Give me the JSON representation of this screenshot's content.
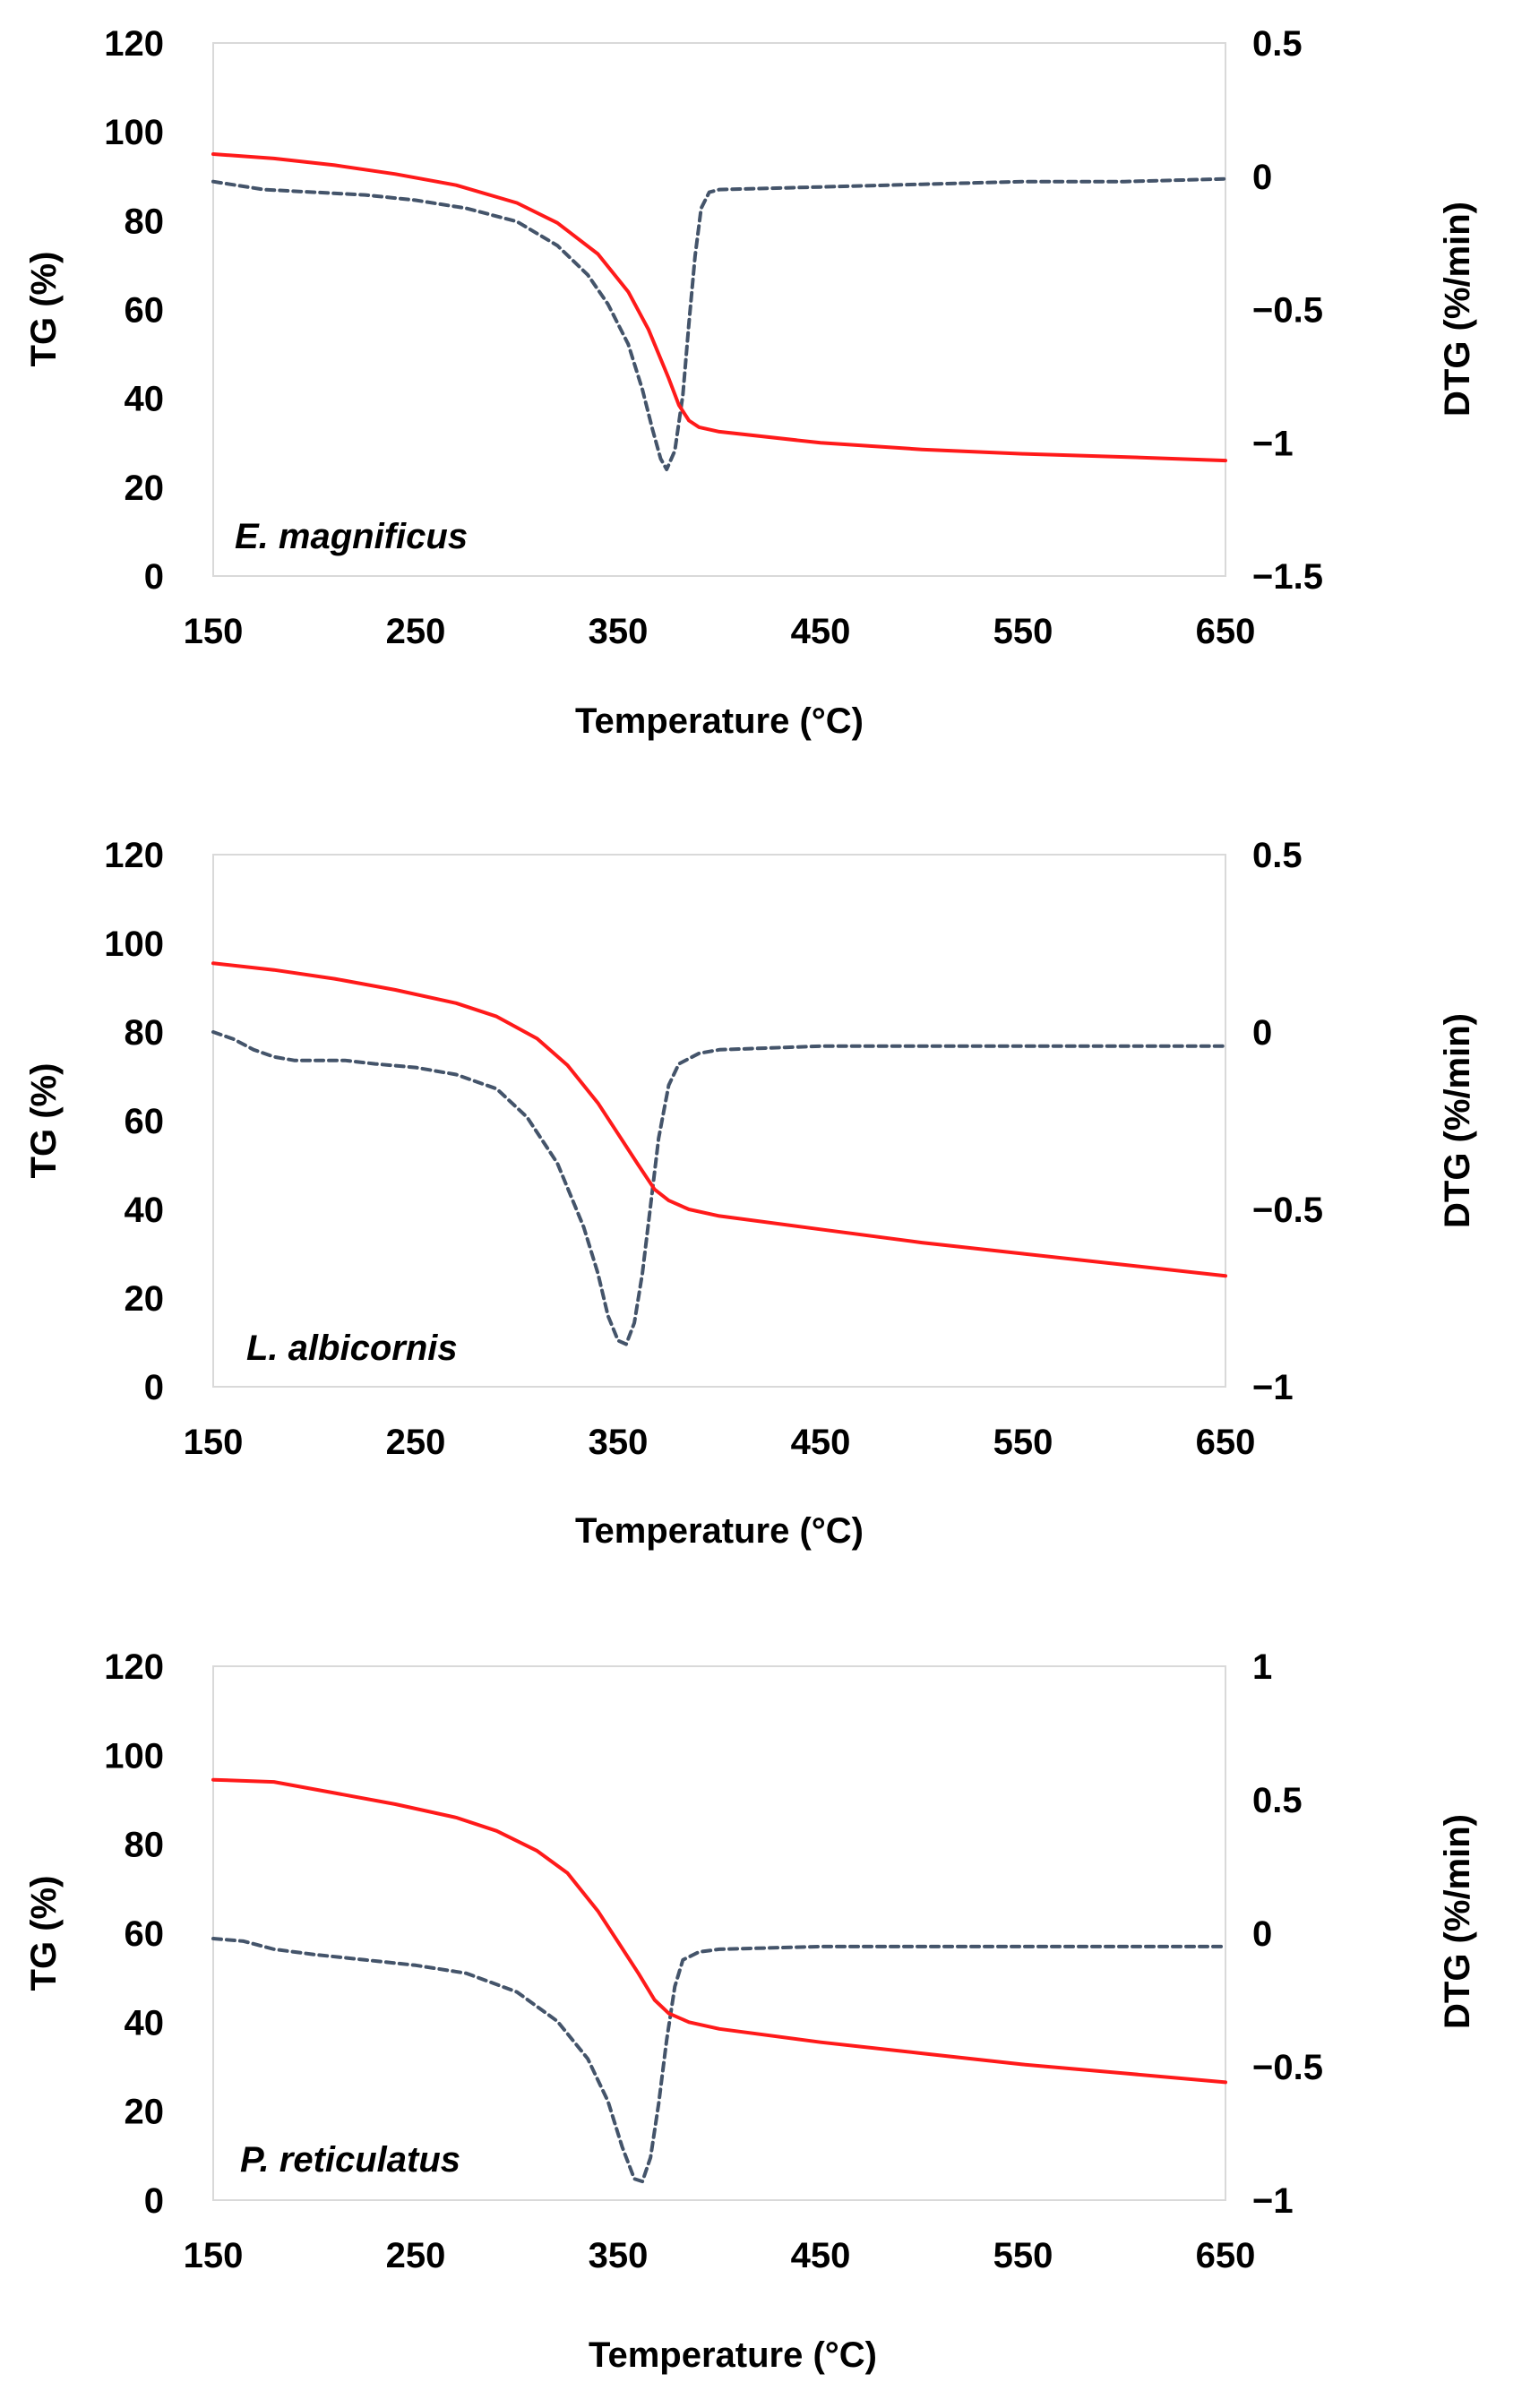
{
  "chart_data": [
    {
      "type": "line",
      "panel_label": "E. magnificus",
      "xlabel": "Temperature (°C)",
      "ylabel": "TG (%)",
      "y2label": "DTG (%/min)",
      "xlim": [
        150,
        650
      ],
      "ylim": [
        0,
        120
      ],
      "y2lim": [
        -1.5,
        0.5
      ],
      "xticks": [
        "150",
        "250",
        "350",
        "450",
        "550",
        "650"
      ],
      "yticks": [
        "0",
        "20",
        "40",
        "60",
        "80",
        "100",
        "120"
      ],
      "y2ticks": [
        "−1.5",
        "−1",
        "−0.5",
        "0",
        "0.5"
      ],
      "y2tick_values": [
        -1.5,
        -1,
        -0.5,
        0,
        0.5
      ],
      "series": [
        {
          "name": "TG",
          "axis": "left",
          "color": "#ff1a1a",
          "style": "solid",
          "x": [
            150,
            180,
            210,
            240,
            270,
            300,
            320,
            340,
            355,
            365,
            375,
            380,
            385,
            390,
            400,
            450,
            500,
            550,
            600,
            650
          ],
          "y": [
            95,
            94,
            92.5,
            90.5,
            88,
            84,
            79.5,
            72.5,
            64,
            55.5,
            44.5,
            38.5,
            35,
            33.5,
            32.5,
            30,
            28.5,
            27.5,
            26.8,
            26
          ]
        },
        {
          "name": "DTG",
          "axis": "right",
          "color": "#44546a",
          "style": "dashed",
          "x": [
            150,
            175,
            200,
            225,
            250,
            275,
            300,
            320,
            335,
            345,
            355,
            362,
            367,
            371,
            374,
            378,
            382,
            385,
            388,
            391,
            395,
            400,
            450,
            500,
            550,
            600,
            650
          ],
          "y": [
            -0.02,
            -0.05,
            -0.06,
            -0.07,
            -0.09,
            -0.12,
            -0.17,
            -0.26,
            -0.37,
            -0.48,
            -0.63,
            -0.8,
            -0.95,
            -1.06,
            -1.1,
            -1.03,
            -0.82,
            -0.55,
            -0.3,
            -0.12,
            -0.06,
            -0.05,
            -0.04,
            -0.03,
            -0.02,
            -0.02,
            -0.01
          ]
        }
      ]
    },
    {
      "type": "line",
      "panel_label": "L. albicornis",
      "xlabel": "Temperature (°C)",
      "ylabel": "TG (%)",
      "y2label": "DTG (%/min)",
      "xlim": [
        150,
        650
      ],
      "ylim": [
        0,
        120
      ],
      "y2lim": [
        -1,
        0.5
      ],
      "xticks": [
        "150",
        "250",
        "350",
        "450",
        "550",
        "650"
      ],
      "yticks": [
        "0",
        "20",
        "40",
        "60",
        "80",
        "100",
        "120"
      ],
      "y2ticks": [
        "−1",
        "−0.5",
        "0",
        "0.5"
      ],
      "y2tick_values": [
        -1,
        -0.5,
        0,
        0.5
      ],
      "series": [
        {
          "name": "TG",
          "axis": "left",
          "color": "#ff1a1a",
          "style": "solid",
          "x": [
            150,
            180,
            210,
            240,
            270,
            290,
            310,
            325,
            340,
            350,
            360,
            368,
            375,
            385,
            400,
            450,
            500,
            550,
            600,
            650
          ],
          "y": [
            95.5,
            94,
            92,
            89.5,
            86.5,
            83.5,
            78.5,
            72.5,
            64,
            57,
            50,
            44.5,
            42,
            40,
            38.5,
            35.5,
            32.5,
            30,
            27.5,
            25
          ]
        },
        {
          "name": "DTG",
          "axis": "right",
          "color": "#44546a",
          "style": "dashed",
          "x": [
            150,
            160,
            170,
            180,
            190,
            200,
            215,
            230,
            250,
            270,
            290,
            305,
            320,
            333,
            340,
            345,
            350,
            354,
            358,
            362,
            366,
            370,
            375,
            380,
            390,
            400,
            450,
            500,
            550,
            600,
            650
          ],
          "y": [
            0,
            -0.02,
            -0.05,
            -0.07,
            -0.08,
            -0.08,
            -0.08,
            -0.09,
            -0.1,
            -0.12,
            -0.16,
            -0.24,
            -0.37,
            -0.55,
            -0.68,
            -0.8,
            -0.87,
            -0.88,
            -0.82,
            -0.68,
            -0.49,
            -0.3,
            -0.15,
            -0.09,
            -0.06,
            -0.05,
            -0.04,
            -0.04,
            -0.04,
            -0.04,
            -0.04
          ]
        }
      ]
    },
    {
      "type": "line",
      "panel_label": "P. reticulatus",
      "xlabel": "Temperature (°C)",
      "ylabel": "TG (%)",
      "y2label": "DTG (%/min)",
      "xlim": [
        150,
        650
      ],
      "ylim": [
        0,
        120
      ],
      "y2lim": [
        -1,
        1
      ],
      "xticks": [
        "150",
        "250",
        "350",
        "450",
        "550",
        "650"
      ],
      "yticks": [
        "0",
        "20",
        "40",
        "60",
        "80",
        "100",
        "120"
      ],
      "y2ticks": [
        "−1",
        "−0.5",
        "0",
        "0.5",
        "1"
      ],
      "y2tick_values": [
        -1,
        -0.5,
        0,
        0.5,
        1
      ],
      "series": [
        {
          "name": "TG",
          "axis": "left",
          "color": "#ff1a1a",
          "style": "solid",
          "x": [
            150,
            180,
            210,
            240,
            270,
            290,
            310,
            325,
            340,
            350,
            360,
            368,
            375,
            385,
            400,
            450,
            500,
            550,
            600,
            650
          ],
          "y": [
            94.5,
            94,
            91.5,
            89,
            86,
            83,
            78.5,
            73.5,
            65,
            58,
            51,
            45,
            42,
            40,
            38.5,
            35.5,
            33,
            30.5,
            28.5,
            26.5
          ]
        },
        {
          "name": "DTG",
          "axis": "right",
          "color": "#44546a",
          "style": "dashed",
          "x": [
            150,
            165,
            180,
            200,
            225,
            250,
            275,
            300,
            320,
            335,
            345,
            352,
            358,
            362,
            366,
            370,
            374,
            378,
            382,
            390,
            400,
            450,
            500,
            550,
            600,
            650
          ],
          "y": [
            -0.02,
            -0.03,
            -0.06,
            -0.08,
            -0.1,
            -0.12,
            -0.15,
            -0.22,
            -0.33,
            -0.47,
            -0.63,
            -0.8,
            -0.92,
            -0.93,
            -0.84,
            -0.64,
            -0.4,
            -0.2,
            -0.1,
            -0.07,
            -0.06,
            -0.05,
            -0.05,
            -0.05,
            -0.05,
            -0.05
          ]
        }
      ]
    }
  ]
}
